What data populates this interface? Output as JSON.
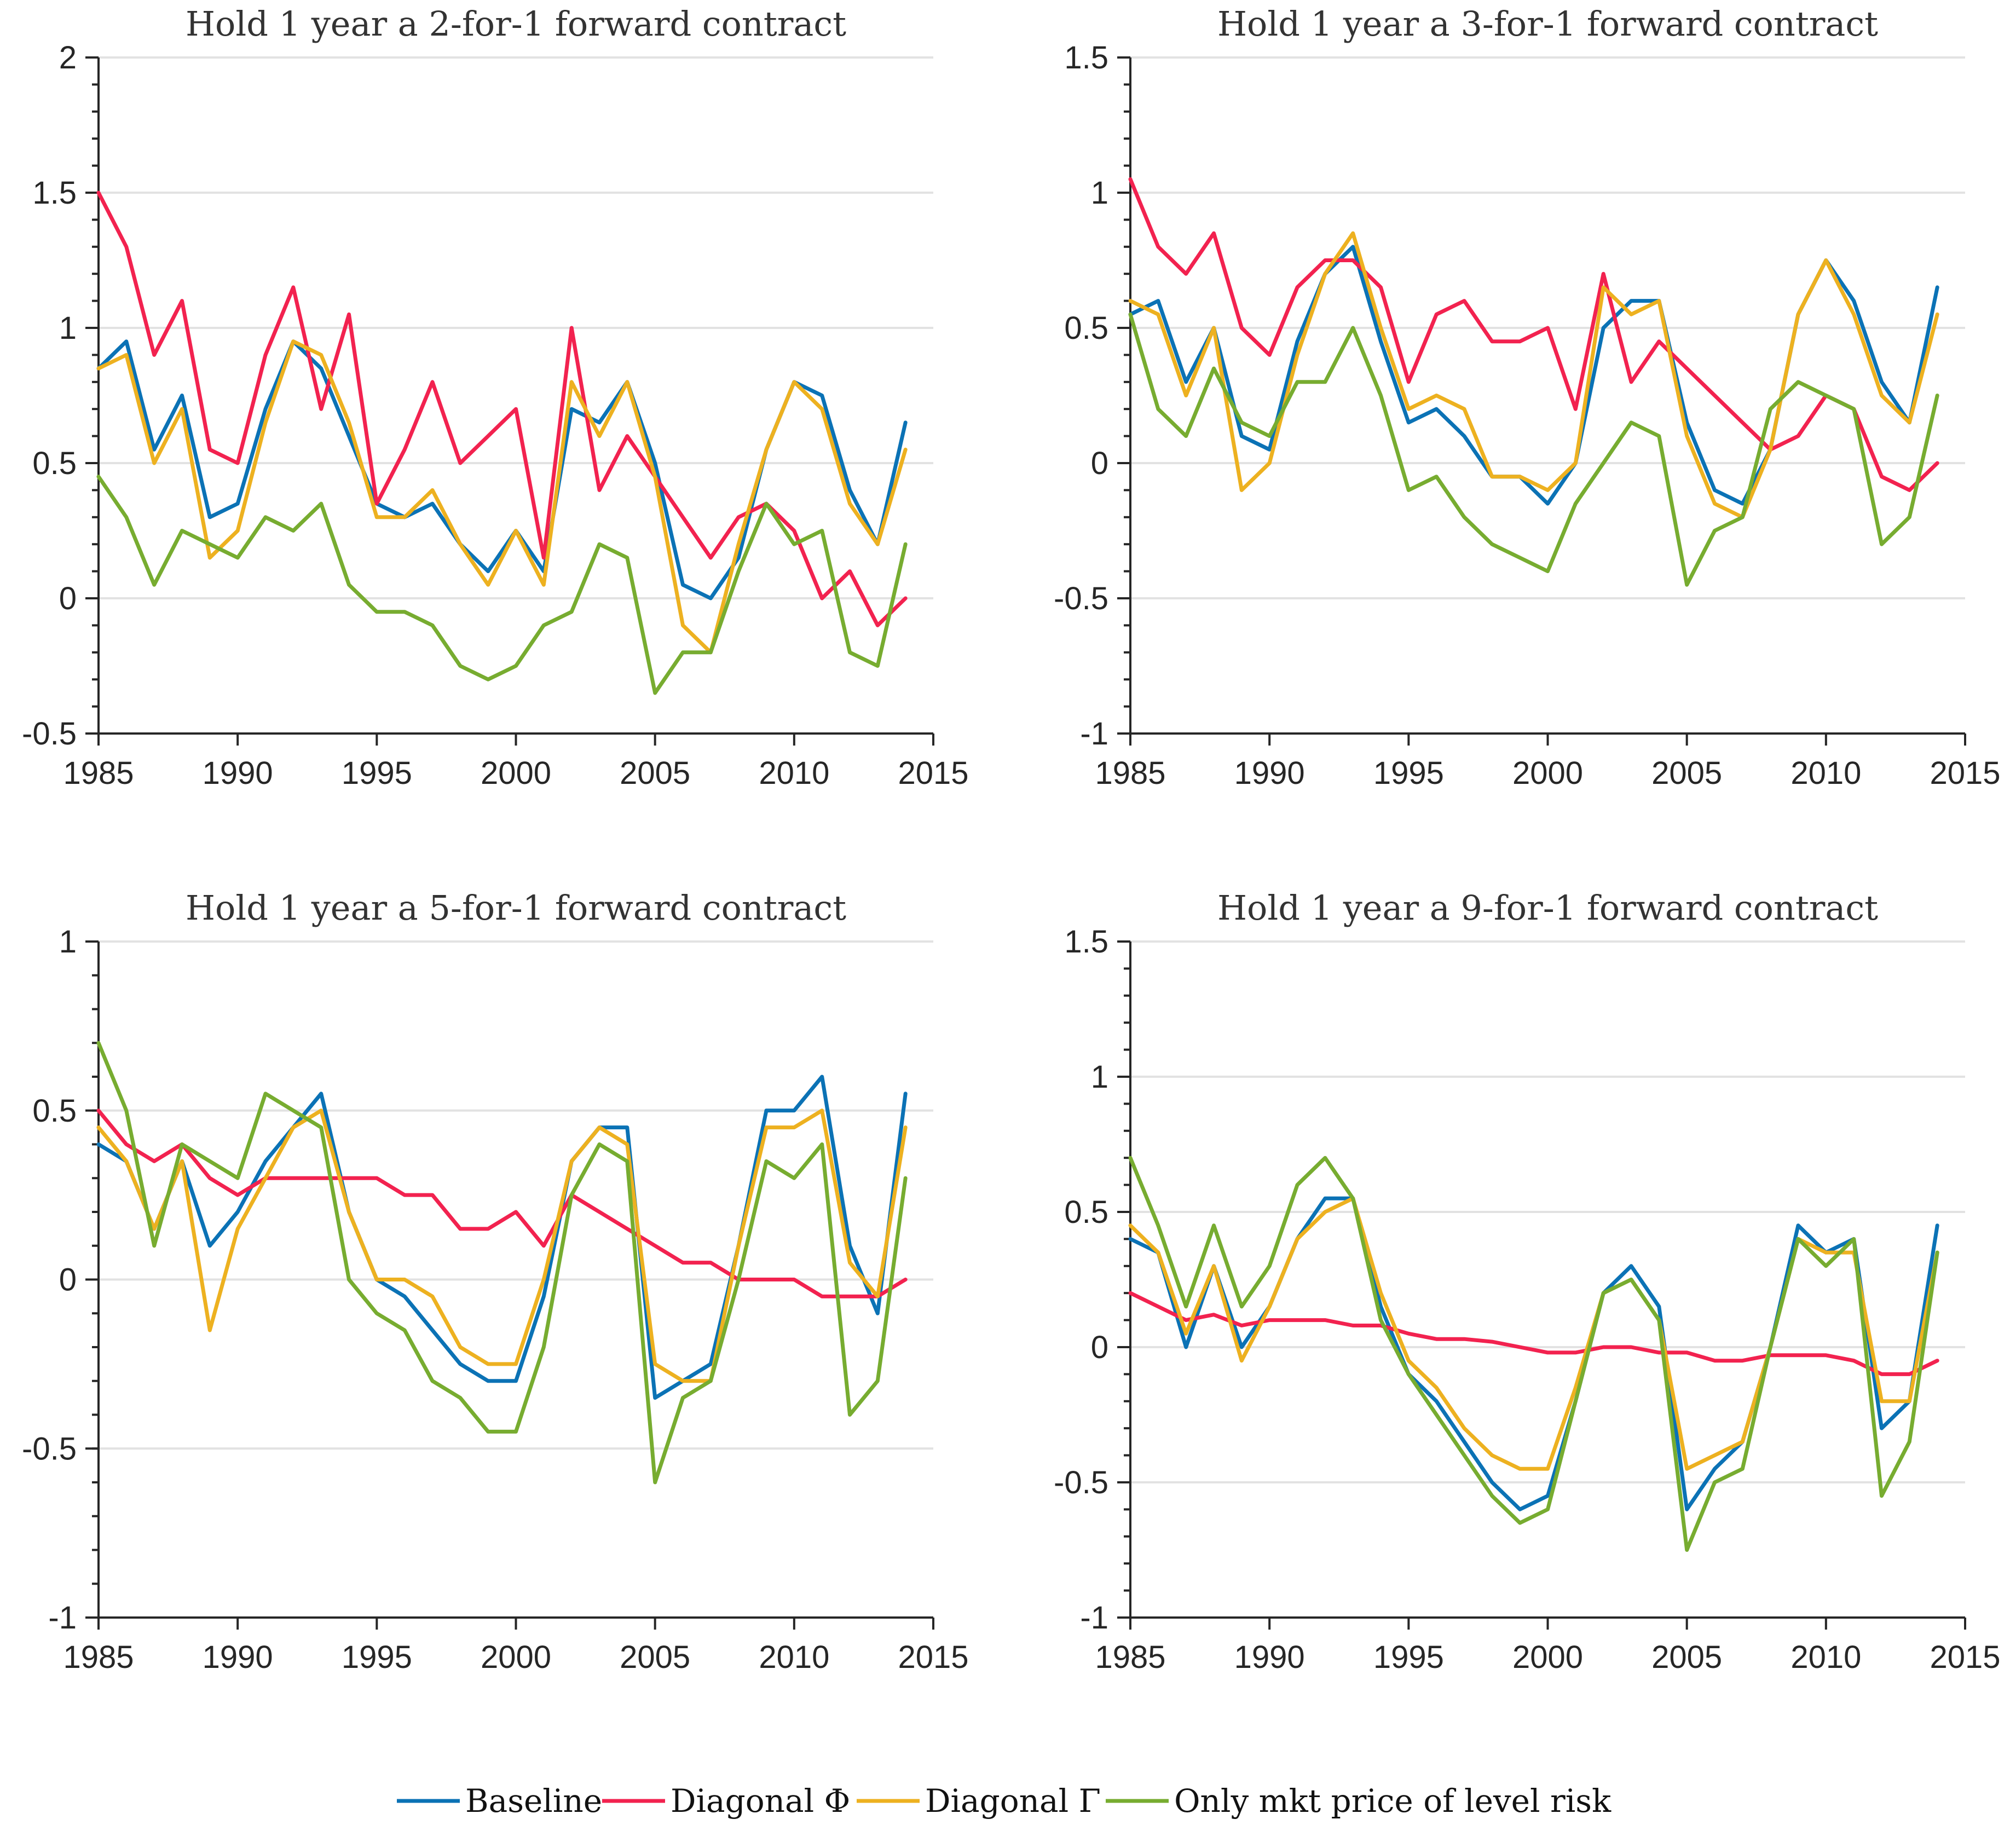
{
  "chart_data": [
    {
      "type": "line",
      "title": "Hold 1 year a 2-for-1 forward contract",
      "xlim": [
        1985,
        2015
      ],
      "ylim": [
        -0.5,
        2
      ],
      "xticks": [
        1985,
        1990,
        1995,
        2000,
        2005,
        2010,
        2015
      ],
      "yticks": [
        -0.5,
        0,
        0.5,
        1,
        1.5,
        2
      ],
      "ytick_labels": [
        "-0.5",
        "0",
        "0.5",
        "1",
        "1.5",
        "2"
      ],
      "x": [
        1985,
        1986,
        1987,
        1988,
        1989,
        1990,
        1991,
        1992,
        1993,
        1994,
        1995,
        1996,
        1997,
        1998,
        1999,
        2000,
        2001,
        2002,
        2003,
        2004,
        2005,
        2006,
        2007,
        2008,
        2009,
        2010,
        2011,
        2012,
        2013,
        2014
      ],
      "series": [
        {
          "name": "Baseline",
          "color": "#0b72b5",
          "values": [
            0.85,
            0.95,
            0.55,
            0.75,
            0.3,
            0.35,
            0.7,
            0.95,
            0.85,
            0.6,
            0.35,
            0.3,
            0.35,
            0.2,
            0.1,
            0.25,
            0.1,
            0.7,
            0.65,
            0.8,
            0.5,
            0.05,
            0.0,
            0.15,
            0.55,
            0.8,
            0.75,
            0.4,
            0.2,
            0.65
          ]
        },
        {
          "name": "Diagonal Φ",
          "color": "#f2224f",
          "values": [
            1.5,
            1.3,
            0.9,
            1.1,
            0.55,
            0.5,
            0.9,
            1.15,
            0.7,
            1.05,
            0.35,
            0.55,
            0.8,
            0.5,
            0.6,
            0.7,
            0.15,
            1.0,
            0.4,
            0.6,
            0.45,
            0.3,
            0.15,
            0.3,
            0.35,
            0.25,
            0.0,
            0.1,
            -0.1,
            0.0
          ]
        },
        {
          "name": "Diagonal Γ",
          "color": "#edb120",
          "values": [
            0.85,
            0.9,
            0.5,
            0.7,
            0.15,
            0.25,
            0.65,
            0.95,
            0.9,
            0.65,
            0.3,
            0.3,
            0.4,
            0.2,
            0.05,
            0.25,
            0.05,
            0.8,
            0.6,
            0.8,
            0.45,
            -0.1,
            -0.2,
            0.2,
            0.55,
            0.8,
            0.7,
            0.35,
            0.2,
            0.55
          ]
        },
        {
          "name": "Only mkt price of level risk",
          "color": "#77ac30",
          "values": [
            0.45,
            0.3,
            0.05,
            0.25,
            0.2,
            0.15,
            0.3,
            0.25,
            0.35,
            0.05,
            -0.05,
            -0.05,
            -0.1,
            -0.25,
            -0.3,
            -0.25,
            -0.1,
            -0.05,
            0.2,
            0.15,
            -0.35,
            -0.2,
            -0.2,
            0.1,
            0.35,
            0.2,
            0.25,
            -0.2,
            -0.25,
            0.2
          ]
        }
      ]
    },
    {
      "type": "line",
      "title": "Hold 1 year a 3-for-1 forward contract",
      "xlim": [
        1985,
        2015
      ],
      "ylim": [
        -1,
        1.5
      ],
      "xticks": [
        1985,
        1990,
        1995,
        2000,
        2005,
        2010,
        2015
      ],
      "yticks": [
        -1,
        -0.5,
        0,
        0.5,
        1,
        1.5
      ],
      "ytick_labels": [
        "-1",
        "-0.5",
        "0",
        "0.5",
        "1",
        "1.5"
      ],
      "x": [
        1985,
        1986,
        1987,
        1988,
        1989,
        1990,
        1991,
        1992,
        1993,
        1994,
        1995,
        1996,
        1997,
        1998,
        1999,
        2000,
        2001,
        2002,
        2003,
        2004,
        2005,
        2006,
        2007,
        2008,
        2009,
        2010,
        2011,
        2012,
        2013,
        2014
      ],
      "series": [
        {
          "name": "Baseline",
          "color": "#0b72b5",
          "values": [
            0.55,
            0.6,
            0.3,
            0.5,
            0.1,
            0.05,
            0.45,
            0.7,
            0.8,
            0.45,
            0.15,
            0.2,
            0.1,
            -0.05,
            -0.05,
            -0.15,
            0.0,
            0.5,
            0.6,
            0.6,
            0.15,
            -0.1,
            -0.15,
            0.05,
            0.55,
            0.75,
            0.6,
            0.3,
            0.15,
            0.65
          ]
        },
        {
          "name": "Diagonal Φ",
          "color": "#f2224f",
          "values": [
            1.05,
            0.8,
            0.7,
            0.85,
            0.5,
            0.4,
            0.65,
            0.75,
            0.75,
            0.65,
            0.3,
            0.55,
            0.6,
            0.45,
            0.45,
            0.5,
            0.2,
            0.7,
            0.3,
            0.45,
            0.35,
            0.25,
            0.15,
            0.05,
            0.1,
            0.25,
            0.2,
            -0.05,
            -0.1,
            0.0
          ]
        },
        {
          "name": "Diagonal Γ",
          "color": "#edb120",
          "values": [
            0.6,
            0.55,
            0.25,
            0.5,
            -0.1,
            0.0,
            0.4,
            0.7,
            0.85,
            0.5,
            0.2,
            0.25,
            0.2,
            -0.05,
            -0.05,
            -0.1,
            0.0,
            0.65,
            0.55,
            0.6,
            0.1,
            -0.15,
            -0.2,
            0.05,
            0.55,
            0.75,
            0.55,
            0.25,
            0.15,
            0.55
          ]
        },
        {
          "name": "Only mkt price of level risk",
          "color": "#77ac30",
          "values": [
            0.55,
            0.2,
            0.1,
            0.35,
            0.15,
            0.1,
            0.3,
            0.3,
            0.5,
            0.25,
            -0.1,
            -0.05,
            -0.2,
            -0.3,
            -0.35,
            -0.4,
            -0.15,
            0.0,
            0.15,
            0.1,
            -0.45,
            -0.25,
            -0.2,
            0.2,
            0.3,
            0.25,
            0.2,
            -0.3,
            -0.2,
            0.25
          ]
        }
      ]
    },
    {
      "type": "line",
      "title": "Hold 1 year a 5-for-1 forward contract",
      "xlim": [
        1985,
        2015
      ],
      "ylim": [
        -1,
        1
      ],
      "xticks": [
        1985,
        1990,
        1995,
        2000,
        2005,
        2010,
        2015
      ],
      "yticks": [
        -1,
        -0.5,
        0,
        0.5,
        1
      ],
      "ytick_labels": [
        "-1",
        "-0.5",
        "0",
        "0.5",
        "1"
      ],
      "x": [
        1985,
        1986,
        1987,
        1988,
        1989,
        1990,
        1991,
        1992,
        1993,
        1994,
        1995,
        1996,
        1997,
        1998,
        1999,
        2000,
        2001,
        2002,
        2003,
        2004,
        2005,
        2006,
        2007,
        2008,
        2009,
        2010,
        2011,
        2012,
        2013,
        2014
      ],
      "series": [
        {
          "name": "Baseline",
          "color": "#0b72b5",
          "values": [
            0.4,
            0.35,
            0.15,
            0.35,
            0.1,
            0.2,
            0.35,
            0.45,
            0.55,
            0.2,
            0.0,
            -0.05,
            -0.15,
            -0.25,
            -0.3,
            -0.3,
            -0.05,
            0.35,
            0.45,
            0.45,
            -0.35,
            -0.3,
            -0.25,
            0.1,
            0.5,
            0.5,
            0.6,
            0.1,
            -0.1,
            0.55
          ]
        },
        {
          "name": "Diagonal Φ",
          "color": "#f2224f",
          "values": [
            0.5,
            0.4,
            0.35,
            0.4,
            0.3,
            0.25,
            0.3,
            0.3,
            0.3,
            0.3,
            0.3,
            0.25,
            0.25,
            0.15,
            0.15,
            0.2,
            0.1,
            0.25,
            0.2,
            0.15,
            0.1,
            0.05,
            0.05,
            0.0,
            0.0,
            0.0,
            -0.05,
            -0.05,
            -0.05,
            0.0
          ]
        },
        {
          "name": "Diagonal Γ",
          "color": "#edb120",
          "values": [
            0.45,
            0.35,
            0.15,
            0.35,
            -0.15,
            0.15,
            0.3,
            0.45,
            0.5,
            0.2,
            0.0,
            0.0,
            -0.05,
            -0.2,
            -0.25,
            -0.25,
            0.0,
            0.35,
            0.45,
            0.4,
            -0.25,
            -0.3,
            -0.3,
            0.1,
            0.45,
            0.45,
            0.5,
            0.05,
            -0.05,
            0.45
          ]
        },
        {
          "name": "Only mkt price of level risk",
          "color": "#77ac30",
          "values": [
            0.7,
            0.5,
            0.1,
            0.4,
            0.35,
            0.3,
            0.55,
            0.5,
            0.45,
            0.0,
            -0.1,
            -0.15,
            -0.3,
            -0.35,
            -0.45,
            -0.45,
            -0.2,
            0.25,
            0.4,
            0.35,
            -0.6,
            -0.35,
            -0.3,
            0.0,
            0.35,
            0.3,
            0.4,
            -0.4,
            -0.3,
            0.3
          ]
        }
      ]
    },
    {
      "type": "line",
      "title": "Hold 1 year a 9-for-1 forward contract",
      "xlim": [
        1985,
        2015
      ],
      "ylim": [
        -1,
        1.5
      ],
      "xticks": [
        1985,
        1990,
        1995,
        2000,
        2005,
        2010,
        2015
      ],
      "yticks": [
        -1,
        -0.5,
        0,
        0.5,
        1,
        1.5
      ],
      "ytick_labels": [
        "-1",
        "-0.5",
        "0",
        "0.5",
        "1",
        "1.5"
      ],
      "x": [
        1985,
        1986,
        1987,
        1988,
        1989,
        1990,
        1991,
        1992,
        1993,
        1994,
        1995,
        1996,
        1997,
        1998,
        1999,
        2000,
        2001,
        2002,
        2003,
        2004,
        2005,
        2006,
        2007,
        2008,
        2009,
        2010,
        2011,
        2012,
        2013,
        2014
      ],
      "series": [
        {
          "name": "Baseline",
          "color": "#0b72b5",
          "values": [
            0.4,
            0.35,
            0.0,
            0.3,
            0.0,
            0.15,
            0.4,
            0.55,
            0.55,
            0.15,
            -0.1,
            -0.2,
            -0.35,
            -0.5,
            -0.6,
            -0.55,
            -0.2,
            0.2,
            0.3,
            0.15,
            -0.6,
            -0.45,
            -0.35,
            0.0,
            0.45,
            0.35,
            0.4,
            -0.3,
            -0.2,
            0.45
          ]
        },
        {
          "name": "Diagonal Φ",
          "color": "#f2224f",
          "values": [
            0.2,
            0.15,
            0.1,
            0.12,
            0.08,
            0.1,
            0.1,
            0.1,
            0.08,
            0.08,
            0.05,
            0.03,
            0.03,
            0.02,
            0.0,
            -0.02,
            -0.02,
            0.0,
            0.0,
            -0.02,
            -0.02,
            -0.05,
            -0.05,
            -0.03,
            -0.03,
            -0.03,
            -0.05,
            -0.1,
            -0.1,
            -0.05
          ]
        },
        {
          "name": "Diagonal Γ",
          "color": "#edb120",
          "values": [
            0.45,
            0.35,
            0.05,
            0.3,
            -0.05,
            0.15,
            0.4,
            0.5,
            0.55,
            0.2,
            -0.05,
            -0.15,
            -0.3,
            -0.4,
            -0.45,
            -0.45,
            -0.15,
            0.2,
            0.25,
            0.1,
            -0.45,
            -0.4,
            -0.35,
            0.0,
            0.4,
            0.35,
            0.35,
            -0.2,
            -0.2,
            0.35
          ]
        },
        {
          "name": "Only mkt price of level risk",
          "color": "#77ac30",
          "values": [
            0.7,
            0.45,
            0.15,
            0.45,
            0.15,
            0.3,
            0.6,
            0.7,
            0.55,
            0.1,
            -0.1,
            -0.25,
            -0.4,
            -0.55,
            -0.65,
            -0.6,
            -0.2,
            0.2,
            0.25,
            0.1,
            -0.75,
            -0.5,
            -0.45,
            0.0,
            0.4,
            0.3,
            0.4,
            -0.55,
            -0.35,
            0.35
          ]
        }
      ]
    }
  ],
  "legend": [
    {
      "label": "Baseline",
      "color": "#0b72b5"
    },
    {
      "label": "Diagonal Φ",
      "color": "#f2224f"
    },
    {
      "label": "Diagonal Γ",
      "color": "#edb120"
    },
    {
      "label": "Only mkt price of level risk",
      "color": "#77ac30"
    }
  ]
}
